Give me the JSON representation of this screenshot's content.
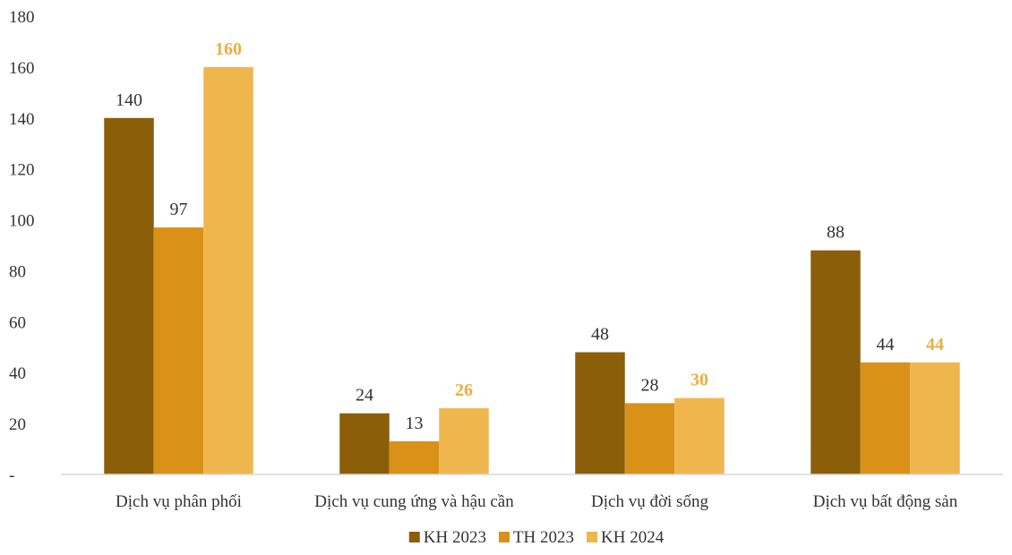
{
  "chart_data": {
    "type": "bar",
    "title": "",
    "xlabel": "",
    "ylabel": "",
    "categories": [
      "Dịch vụ phân phối",
      "Dịch vụ cung ứng và hậu cần",
      "Dịch vụ đời sống",
      "Dịch vụ bất động sản"
    ],
    "series": [
      {
        "name": "KH 2023",
        "color": "#8B5E0A",
        "values": [
          140,
          24,
          48,
          88
        ],
        "label_color": "#333333",
        "label_bold": false
      },
      {
        "name": "TH 2023",
        "color": "#D99117",
        "values": [
          97,
          13,
          28,
          44
        ],
        "label_color": "#333333",
        "label_bold": false
      },
      {
        "name": "KH 2024",
        "color": "#F0B64E",
        "values": [
          160,
          26,
          30,
          44
        ],
        "label_color": "#EBAE43",
        "label_bold": true
      }
    ],
    "ylim": [
      0,
      180
    ],
    "yticks": [
      0,
      20,
      40,
      60,
      80,
      100,
      120,
      140,
      160,
      180
    ],
    "ytick_labels": [
      "-",
      "20",
      "40",
      "60",
      "80",
      "100",
      "120",
      "140",
      "160",
      "180"
    ],
    "grid": false,
    "legend_position": "bottom-center",
    "baseline_color": "#D9D9D9"
  }
}
